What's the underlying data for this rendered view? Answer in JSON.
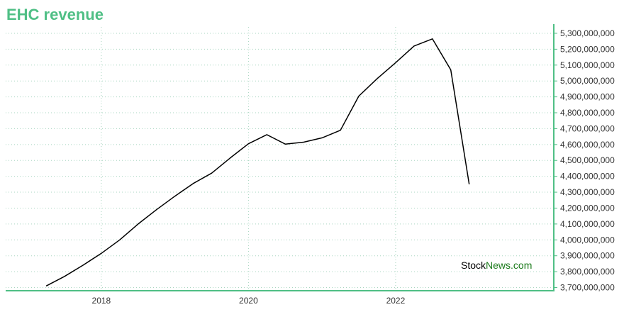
{
  "colors": {
    "accent": "#4fbf85",
    "line": "#000000",
    "grid": "#a8d5c0",
    "watermark_brand": "#1a7a1a",
    "watermark_text": "#000000"
  },
  "watermark": {
    "part1": "Stock",
    "part2": "News",
    "part3": ".com"
  },
  "chart_data": {
    "type": "line",
    "title": "EHC revenue",
    "xlabel": "",
    "ylabel": "",
    "x_ticks": [
      2018,
      2020,
      2022
    ],
    "x_tick_labels": [
      "2018",
      "2020",
      "2022"
    ],
    "y_ticks": [
      3700000000,
      3800000000,
      3900000000,
      4000000000,
      4100000000,
      4200000000,
      4300000000,
      4400000000,
      4500000000,
      4600000000,
      4700000000,
      4800000000,
      4900000000,
      5000000000,
      5100000000,
      5200000000,
      5300000000
    ],
    "y_tick_labels": [
      "3,700,000,000",
      "3,800,000,000",
      "3,900,000,000",
      "4,000,000,000",
      "4,100,000,000",
      "4,200,000,000",
      "4,300,000,000",
      "4,400,000,000",
      "4,500,000,000",
      "4,600,000,000",
      "4,700,000,000",
      "4,800,000,000",
      "4,900,000,000",
      "5,000,000,000",
      "5,100,000,000",
      "5,200,000,000",
      "5,300,000,000"
    ],
    "xlim": [
      2016.7,
      2024.15
    ],
    "ylim": [
      3680000000,
      5340000000
    ],
    "grid": true,
    "y_axis_side": "right",
    "legend": "none",
    "series": [
      {
        "x": [
          2017.25,
          2017.5,
          2017.75,
          2018.0,
          2018.25,
          2018.5,
          2018.75,
          2019.0,
          2019.25,
          2019.5,
          2019.75,
          2020.0,
          2020.25,
          2020.5,
          2020.75,
          2021.0,
          2021.25,
          2021.5,
          2021.75,
          2022.0,
          2022.25,
          2022.5,
          2022.75,
          2023.0
        ],
        "values": [
          3710000000,
          3770000000,
          3840000000,
          3915000000,
          4000000000,
          4100000000,
          4190000000,
          4275000000,
          4355000000,
          4420000000,
          4515000000,
          4605000000,
          4662000000,
          4603000000,
          4615000000,
          4642000000,
          4690000000,
          4905000000,
          5015000000,
          5115000000,
          5220000000,
          5265000000,
          5070000000,
          4350000000
        ]
      }
    ]
  }
}
